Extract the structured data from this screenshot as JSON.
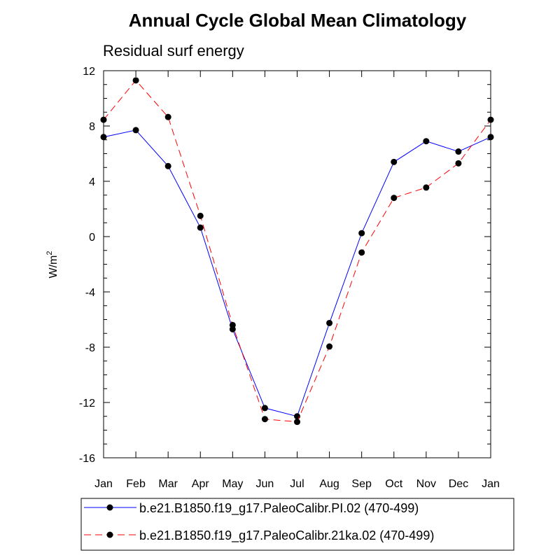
{
  "chart_data": {
    "type": "line",
    "title": "Annual Cycle Global Mean Climatology",
    "subtitle": "Residual surf energy",
    "xlabel": "",
    "ylabel": "W/m",
    "ylabel_superscript": "2",
    "categories": [
      "Jan",
      "Feb",
      "Mar",
      "Apr",
      "May",
      "Jun",
      "Jul",
      "Aug",
      "Sep",
      "Oct",
      "Nov",
      "Dec",
      "Jan"
    ],
    "ylim": [
      -16,
      12
    ],
    "yticks": [
      -16,
      -12,
      -8,
      -4,
      0,
      4,
      8,
      12
    ],
    "ytick_labels": [
      "-16",
      "-12",
      "-8",
      "-4",
      "0",
      "4",
      "8",
      "12"
    ],
    "grid": false,
    "legend_position": "bottom",
    "series": [
      {
        "name": "b.e21.B1850.f19_g17.PaleoCalibr.PI.02 (470-499)",
        "color": "#0000ff",
        "dash": "solid",
        "values": [
          7.2,
          7.7,
          5.1,
          0.65,
          -6.7,
          -12.4,
          -13.0,
          -6.25,
          0.25,
          5.4,
          6.9,
          6.15,
          7.2
        ]
      },
      {
        "name": "b.e21.B1850.f19_g17.PaleoCalibr.21ka.02 (470-499)",
        "color": "#ff0000",
        "dash": "dashed",
        "values": [
          8.45,
          11.3,
          8.65,
          1.5,
          -6.4,
          -13.2,
          -13.4,
          -7.95,
          -1.15,
          2.8,
          3.55,
          5.3,
          8.45
        ]
      }
    ]
  }
}
